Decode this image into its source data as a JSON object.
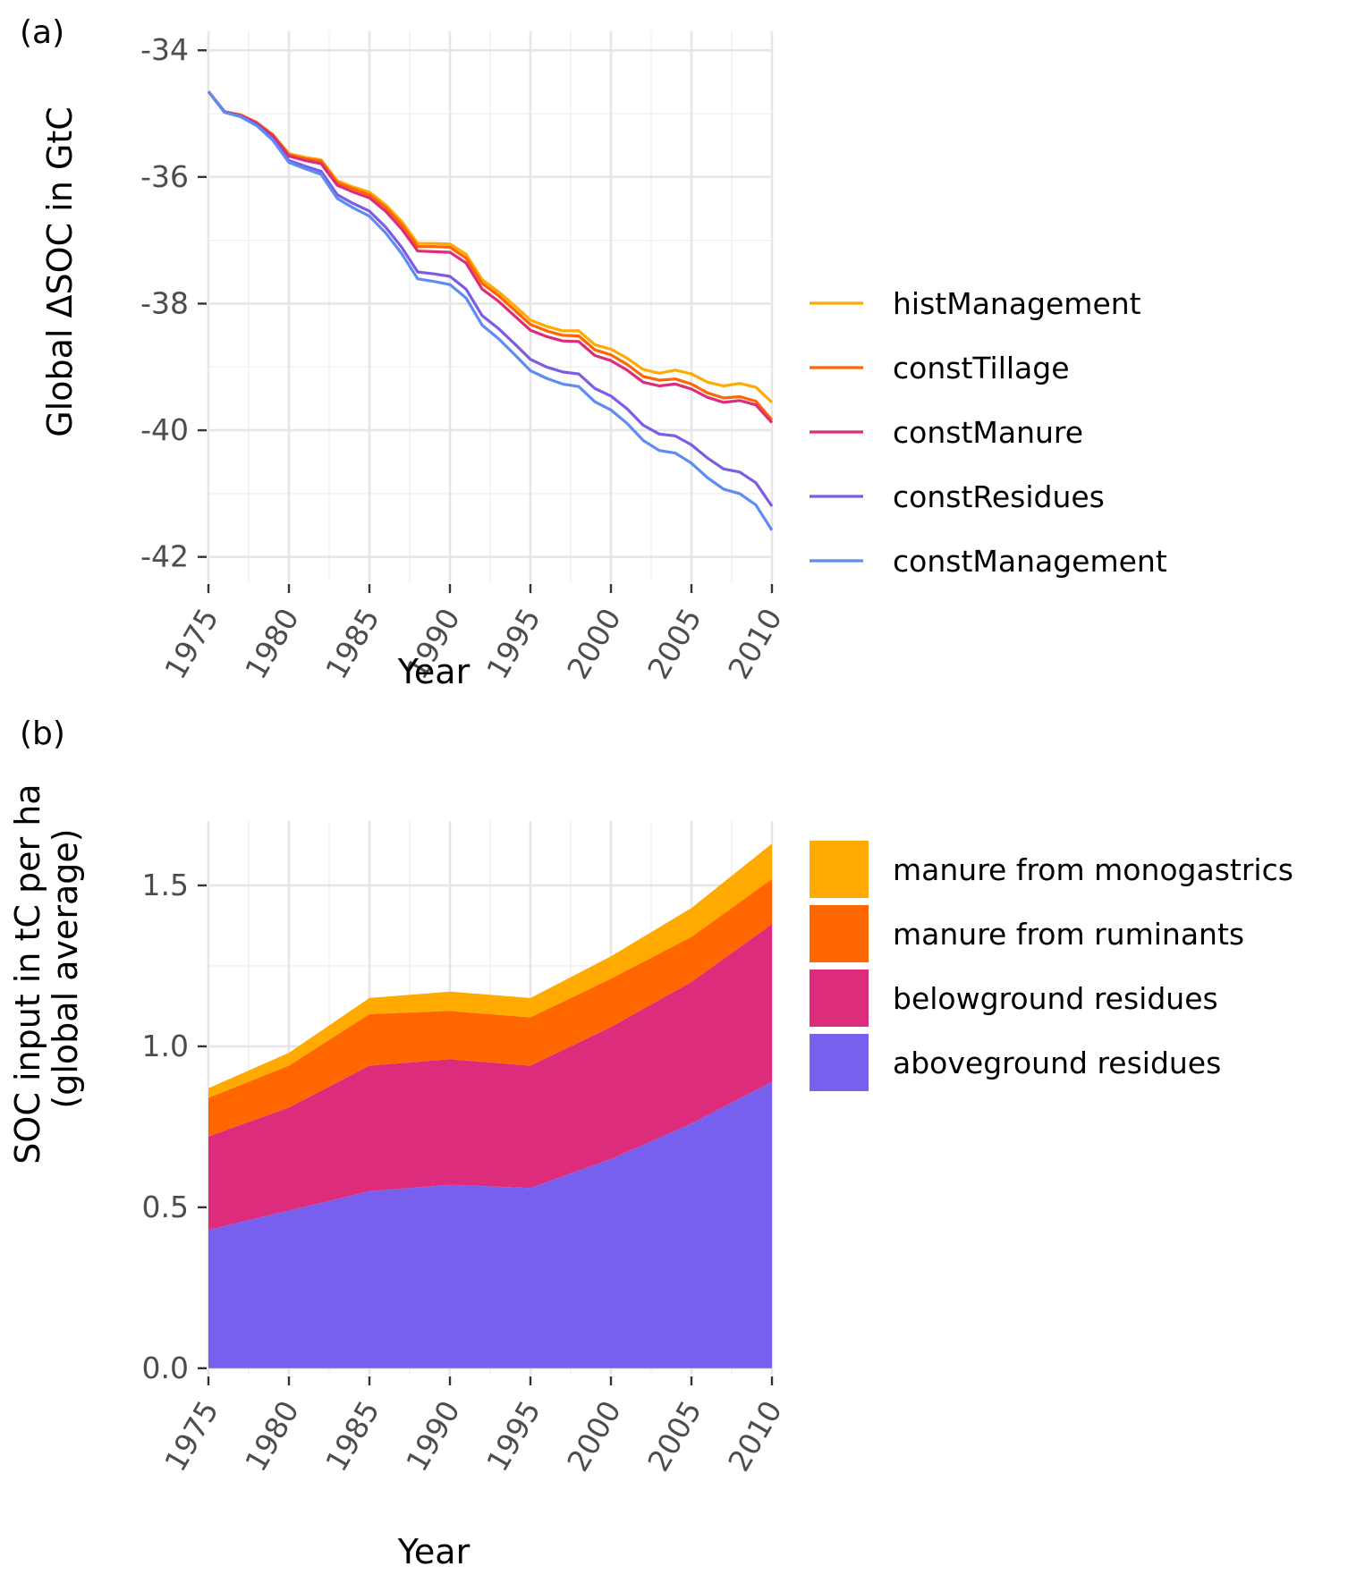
{
  "chart_data": [
    {
      "type": "line",
      "panel_label": "(a)",
      "xlabel": "Year",
      "ylabel": "Global ΔSOC in GtC",
      "xlim": [
        1975,
        2010
      ],
      "ylim": [
        -42.4,
        -33.7
      ],
      "x_ticks": [
        1975,
        1980,
        1985,
        1990,
        1995,
        2000,
        2005,
        2010
      ],
      "y_ticks": [
        -34,
        -36,
        -38,
        -40,
        -42
      ],
      "legend_position": "right",
      "x": [
        1975,
        1976,
        1977,
        1978,
        1979,
        1980,
        1981,
        1982,
        1983,
        1984,
        1985,
        1986,
        1987,
        1988,
        1989,
        1990,
        1991,
        1992,
        1993,
        1994,
        1995,
        1996,
        1997,
        1998,
        1999,
        2000,
        2001,
        2002,
        2003,
        2004,
        2005,
        2006,
        2007,
        2008,
        2009,
        2010
      ],
      "series": [
        {
          "name": "histManagement",
          "color": "#FFAA00",
          "values": [
            -34.65,
            -34.97,
            -35.02,
            -35.14,
            -35.33,
            -35.63,
            -35.69,
            -35.73,
            -36.06,
            -36.16,
            -36.24,
            -36.44,
            -36.7,
            -37.05,
            -37.05,
            -37.06,
            -37.22,
            -37.62,
            -37.81,
            -38.03,
            -38.26,
            -38.36,
            -38.43,
            -38.43,
            -38.65,
            -38.72,
            -38.86,
            -39.04,
            -39.1,
            -39.05,
            -39.11,
            -39.24,
            -39.3,
            -39.26,
            -39.32,
            -39.56
          ]
        },
        {
          "name": "constTillage",
          "color": "#FF6600",
          "values": [
            -34.65,
            -34.97,
            -35.02,
            -35.14,
            -35.34,
            -35.65,
            -35.71,
            -35.75,
            -36.09,
            -36.19,
            -36.28,
            -36.48,
            -36.75,
            -37.1,
            -37.1,
            -37.11,
            -37.28,
            -37.68,
            -37.87,
            -38.1,
            -38.33,
            -38.43,
            -38.5,
            -38.51,
            -38.73,
            -38.81,
            -38.96,
            -39.15,
            -39.21,
            -39.19,
            -39.27,
            -39.41,
            -39.49,
            -39.47,
            -39.54,
            -39.84
          ]
        },
        {
          "name": "constManure",
          "color": "#DD2C7C",
          "values": [
            -34.65,
            -34.97,
            -35.03,
            -35.15,
            -35.35,
            -35.67,
            -35.74,
            -35.79,
            -36.13,
            -36.24,
            -36.33,
            -36.54,
            -36.82,
            -37.17,
            -37.18,
            -37.19,
            -37.36,
            -37.77,
            -37.96,
            -38.19,
            -38.42,
            -38.52,
            -38.59,
            -38.6,
            -38.82,
            -38.9,
            -39.05,
            -39.24,
            -39.3,
            -39.27,
            -39.35,
            -39.48,
            -39.56,
            -39.53,
            -39.6,
            -39.88
          ]
        },
        {
          "name": "constResidues",
          "color": "#7C5CE6",
          "values": [
            -34.65,
            -34.98,
            -35.04,
            -35.18,
            -35.4,
            -35.74,
            -35.83,
            -35.91,
            -36.28,
            -36.42,
            -36.54,
            -36.79,
            -37.11,
            -37.5,
            -37.53,
            -37.57,
            -37.77,
            -38.19,
            -38.39,
            -38.63,
            -38.88,
            -39.0,
            -39.08,
            -39.11,
            -39.34,
            -39.46,
            -39.66,
            -39.92,
            -40.06,
            -40.09,
            -40.23,
            -40.44,
            -40.61,
            -40.66,
            -40.83,
            -41.2
          ]
        },
        {
          "name": "constManagement",
          "color": "#5D8CF5",
          "values": [
            -34.65,
            -34.98,
            -35.05,
            -35.19,
            -35.42,
            -35.77,
            -35.87,
            -35.96,
            -36.34,
            -36.49,
            -36.62,
            -36.88,
            -37.21,
            -37.61,
            -37.65,
            -37.7,
            -37.91,
            -38.34,
            -38.55,
            -38.8,
            -39.06,
            -39.18,
            -39.27,
            -39.31,
            -39.55,
            -39.68,
            -39.89,
            -40.16,
            -40.32,
            -40.36,
            -40.52,
            -40.75,
            -40.93,
            -41.0,
            -41.18,
            -41.58
          ]
        }
      ]
    },
    {
      "type": "area",
      "stacked": true,
      "panel_label": "(b)",
      "xlabel": "Year",
      "ylabel": "SOC input in tC per ha\n(global average)",
      "ylabel_lines": [
        "SOC input in tC per ha",
        "(global average)"
      ],
      "xlim": [
        1975,
        2010
      ],
      "ylim": [
        -0.02,
        1.7
      ],
      "x_ticks": [
        1975,
        1980,
        1985,
        1990,
        1995,
        2000,
        2005,
        2010
      ],
      "y_ticks": [
        0.0,
        0.5,
        1.0,
        1.5
      ],
      "y_tick_labels": [
        "0.0",
        "0.5",
        "1.0",
        "1.5"
      ],
      "legend_position": "right",
      "x": [
        1975,
        1980,
        1985,
        1990,
        1995,
        2000,
        2005,
        2010
      ],
      "series": [
        {
          "name": "aboveground residues",
          "color": "#7760EE",
          "values": [
            0.43,
            0.49,
            0.55,
            0.57,
            0.56,
            0.65,
            0.76,
            0.89
          ]
        },
        {
          "name": "belowground residues",
          "color": "#DD2C7C",
          "values": [
            0.29,
            0.32,
            0.39,
            0.39,
            0.38,
            0.41,
            0.44,
            0.49
          ]
        },
        {
          "name": "manure from ruminants",
          "color": "#FF6600",
          "values": [
            0.12,
            0.13,
            0.16,
            0.15,
            0.15,
            0.15,
            0.14,
            0.14
          ]
        },
        {
          "name": "manure from monogastrics",
          "color": "#FFAA00",
          "values": [
            0.03,
            0.04,
            0.05,
            0.06,
            0.06,
            0.07,
            0.09,
            0.11
          ]
        }
      ],
      "legend_order": [
        "manure from monogastrics",
        "manure from ruminants",
        "belowground residues",
        "aboveground residues"
      ]
    }
  ]
}
